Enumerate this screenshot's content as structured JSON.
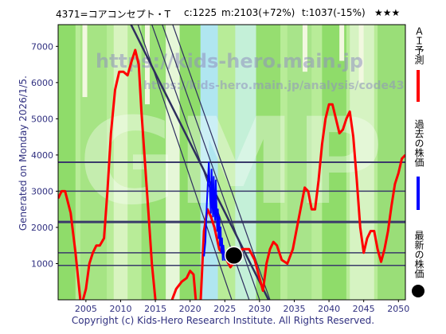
{
  "header": {
    "code_name": "4371=コアコンセプト・T",
    "current": "c:1225",
    "max": "m:2103(+72%)",
    "min": "t:1037(-15%)",
    "stars": "★★★"
  },
  "side_left": "Generated on Monday 2026/1/5.",
  "legend": {
    "ai_forecast": "ＡＩ予測",
    "past_price": "過去の株価",
    "latest_price": "最新の株価",
    "colors": {
      "ai_forecast": "#ff0000",
      "past_price": "#0000ff",
      "latest_price": "#000000"
    }
  },
  "footer": "Copyright (c) Kids-Hero Research Institute. All Rights Reserved.",
  "watermark": {
    "line1": "https://kids-hero.main.jp",
    "line2": "https://kids-hero.main.jp/analysis/code4371.html",
    "big": "GMP"
  },
  "chart_data": {
    "type": "line",
    "xlim": [
      2001,
      2051
    ],
    "ylim": [
      0,
      7600
    ],
    "x_ticks": [
      2005,
      2010,
      2015,
      2020,
      2025,
      2030,
      2035,
      2040,
      2045,
      2050
    ],
    "y_ticks": [
      1000,
      2000,
      3000,
      4000,
      5000,
      6000,
      7000
    ],
    "horizontal_lines": [
      {
        "value": 3800,
        "width": 2
      },
      {
        "value": 3000,
        "width": 1.5
      },
      {
        "value": 2150,
        "width": 3
      },
      {
        "value": 1300,
        "width": 1.5
      },
      {
        "value": 950,
        "width": 1.5
      }
    ],
    "trend_lines": [
      {
        "from": [
          2011.5,
          7600
        ],
        "to": [
          2031.3,
          0
        ],
        "width": 2.5
      },
      {
        "from": [
          2014.5,
          7600
        ],
        "to": [
          2028.5,
          0
        ],
        "width": 1.2
      },
      {
        "from": [
          2016.0,
          7600
        ],
        "to": [
          2030.0,
          0
        ],
        "width": 1.2
      },
      {
        "from": [
          2017.5,
          7600
        ],
        "to": [
          2031.5,
          0
        ],
        "width": 1.2
      },
      {
        "from": [
          2012.5,
          7600
        ],
        "to": [
          2026.0,
          0
        ],
        "width": 1.2
      }
    ],
    "series": [
      {
        "name": "ＡＩ予測",
        "color": "#ff0000",
        "width": 3,
        "x": [
          2001,
          2001.5,
          2002,
          2002.8,
          2003.5,
          2004.3,
          2005,
          2005.5,
          2006,
          2006.5,
          2007,
          2007.6,
          2008.1,
          2008.6,
          2009.2,
          2009.8,
          2010.4,
          2011,
          2011.6,
          2012.1,
          2012.6,
          2013,
          2013.5,
          2014,
          2014.5,
          2015.1,
          2015.8,
          2016.5,
          2017.2,
          2018,
          2018.8,
          2019.5,
          2020,
          2020.5,
          2021,
          2021.5,
          2022,
          2022.5,
          2023,
          2023.5,
          2024.2,
          2025,
          2025.8,
          2026.6,
          2027.5,
          2028.5,
          2029.3,
          2030,
          2030.5,
          2031,
          2031.5,
          2032,
          2032.5,
          2033.2,
          2034,
          2034.8,
          2035.5,
          2036,
          2036.5,
          2037,
          2037.5,
          2038,
          2038.5,
          2039,
          2039.5,
          2040,
          2040.5,
          2041,
          2041.5,
          2042,
          2042.5,
          2043,
          2043.5,
          2044,
          2044.5,
          2045,
          2045.5,
          2046,
          2046.5,
          2047,
          2047.5,
          2048,
          2048.5,
          2049,
          2049.5,
          2050,
          2050.5,
          2051
        ],
        "y": [
          2800,
          3000,
          3000,
          2400,
          1300,
          -200,
          300,
          1000,
          1300,
          1500,
          1500,
          1700,
          3000,
          4600,
          5800,
          6300,
          6300,
          6200,
          6600,
          6900,
          6500,
          5200,
          3800,
          2400,
          1000,
          -200,
          -400,
          -300,
          -100,
          300,
          500,
          600,
          800,
          700,
          -400,
          -100,
          1900,
          2500,
          2300,
          2000,
          1400,
          1200,
          900,
          1100,
          1400,
          1400,
          1100,
          600,
          250,
          1000,
          1400,
          1600,
          1500,
          1100,
          1000,
          1400,
          2100,
          2600,
          3100,
          3000,
          2500,
          2500,
          3300,
          4300,
          5000,
          5400,
          5400,
          5000,
          4600,
          4700,
          5000,
          5200,
          4500,
          3300,
          2000,
          1300,
          1700,
          1900,
          1900,
          1400,
          1050,
          1400,
          1900,
          2600,
          3200,
          3500,
          3900,
          4000
        ]
      },
      {
        "name": "過去の株価",
        "color": "#0000ff",
        "width": 2,
        "x": [
          2022.0,
          2022.2,
          2022.4,
          2022.55,
          2022.7,
          2022.85,
          2023.0,
          2023.1,
          2023.2,
          2023.3,
          2023.4,
          2023.5,
          2023.6,
          2023.7,
          2023.8,
          2023.9,
          2024.0,
          2024.1,
          2024.2,
          2024.3,
          2024.4,
          2024.5,
          2024.6,
          2024.7,
          2024.8,
          2024.9,
          2025.0,
          2025.2,
          2025.4,
          2025.6,
          2025.8,
          2026.0
        ],
        "y": [
          1200,
          1600,
          2600,
          3200,
          3800,
          3000,
          2400,
          3600,
          2700,
          2300,
          3400,
          2500,
          2200,
          3300,
          2600,
          1900,
          2500,
          1700,
          2300,
          1500,
          2000,
          1300,
          1700,
          1100,
          1500,
          1300,
          1100,
          1200,
          1150,
          1250,
          1200,
          1225
        ]
      }
    ],
    "latest_point": {
      "x": 2026.3,
      "y": 1225
    }
  }
}
